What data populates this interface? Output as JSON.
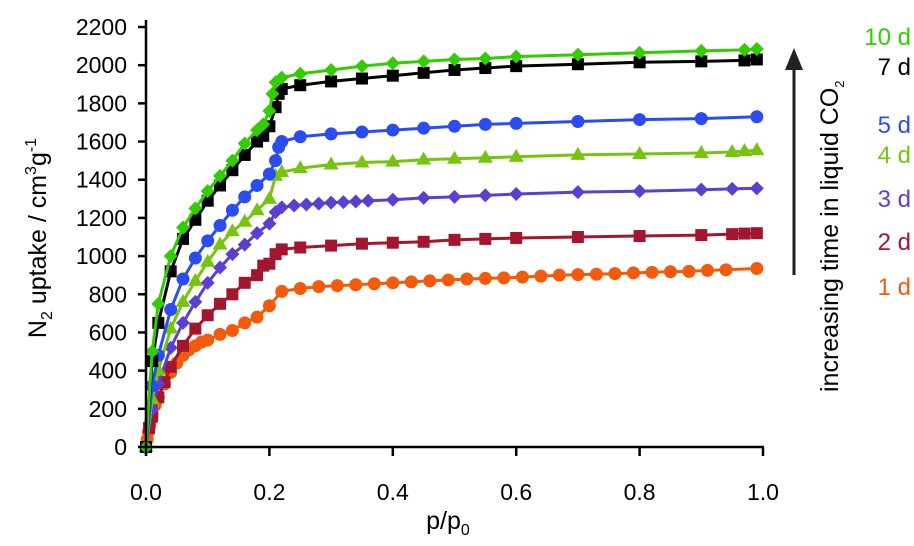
{
  "chart_data": {
    "type": "line",
    "title": "",
    "xlabel": "p/p",
    "xlabel_sub": "0",
    "ylabel_parts": {
      "n": "N",
      "n_sub": "2",
      "mid": " uptake / cm",
      "sup3": "3",
      "g": "g",
      "sup_neg1": "-1"
    },
    "xlim": [
      0.0,
      1.0
    ],
    "ylim": [
      0,
      2200
    ],
    "xticks": [
      0.0,
      0.2,
      0.4,
      0.6,
      0.8,
      1.0
    ],
    "xtick_labels": [
      "0.0",
      "0.2",
      "0.4",
      "0.6",
      "0.8",
      "1.0"
    ],
    "yticks": [
      0,
      200,
      400,
      600,
      800,
      1000,
      1200,
      1400,
      1600,
      1800,
      2000,
      2200
    ],
    "ytick_labels": [
      "0",
      "200",
      "400",
      "600",
      "800",
      "1000",
      "1200",
      "1400",
      "1600",
      "1800",
      "2000",
      "2200"
    ],
    "grid": false,
    "annotation": {
      "text": "increasing time in liquid CO",
      "sub": "2",
      "arrow_direction": "up"
    },
    "legend_placement": "right",
    "series": [
      {
        "name": "10 d",
        "color": "#33cc00",
        "marker": "diamond",
        "x": [
          0.0,
          0.01,
          0.02,
          0.04,
          0.06,
          0.08,
          0.1,
          0.12,
          0.14,
          0.16,
          0.18,
          0.19,
          0.2,
          0.205,
          0.21,
          0.22,
          0.25,
          0.3,
          0.35,
          0.4,
          0.45,
          0.5,
          0.55,
          0.6,
          0.7,
          0.8,
          0.9,
          0.97,
          0.99
        ],
        "y": [
          0,
          500,
          750,
          1000,
          1150,
          1250,
          1340,
          1420,
          1500,
          1590,
          1660,
          1690,
          1760,
          1850,
          1910,
          1935,
          1955,
          1975,
          1995,
          2010,
          2020,
          2030,
          2035,
          2045,
          2055,
          2065,
          2075,
          2080,
          2085
        ]
      },
      {
        "name": "7 d",
        "color": "#000000",
        "marker": "square",
        "x": [
          0.0,
          0.01,
          0.02,
          0.04,
          0.06,
          0.08,
          0.1,
          0.12,
          0.14,
          0.16,
          0.18,
          0.19,
          0.2,
          0.21,
          0.215,
          0.22,
          0.25,
          0.3,
          0.35,
          0.4,
          0.45,
          0.5,
          0.55,
          0.6,
          0.7,
          0.8,
          0.9,
          0.97,
          0.99
        ],
        "y": [
          0,
          450,
          650,
          920,
          1090,
          1190,
          1290,
          1370,
          1450,
          1530,
          1600,
          1630,
          1680,
          1780,
          1850,
          1875,
          1895,
          1915,
          1930,
          1945,
          1960,
          1975,
          1985,
          1995,
          2005,
          2015,
          2020,
          2025,
          2030
        ]
      },
      {
        "name": "5 d",
        "color": "#2b4cf0",
        "marker": "circle",
        "x": [
          0.0,
          0.01,
          0.02,
          0.04,
          0.06,
          0.08,
          0.1,
          0.12,
          0.14,
          0.16,
          0.18,
          0.2,
          0.21,
          0.215,
          0.22,
          0.25,
          0.3,
          0.35,
          0.4,
          0.45,
          0.5,
          0.55,
          0.6,
          0.7,
          0.8,
          0.9,
          0.99
        ],
        "y": [
          0,
          320,
          480,
          720,
          880,
          990,
          1080,
          1160,
          1240,
          1310,
          1370,
          1430,
          1500,
          1570,
          1600,
          1625,
          1640,
          1650,
          1660,
          1670,
          1680,
          1690,
          1695,
          1705,
          1715,
          1720,
          1730
        ]
      },
      {
        "name": "4 d",
        "color": "#77c40f",
        "marker": "triangle",
        "x": [
          0.0,
          0.01,
          0.02,
          0.04,
          0.06,
          0.08,
          0.1,
          0.12,
          0.14,
          0.16,
          0.18,
          0.2,
          0.21,
          0.22,
          0.25,
          0.3,
          0.35,
          0.4,
          0.45,
          0.5,
          0.55,
          0.6,
          0.7,
          0.8,
          0.9,
          0.95,
          0.97,
          0.99
        ],
        "y": [
          0,
          250,
          400,
          620,
          760,
          870,
          970,
          1060,
          1130,
          1180,
          1240,
          1300,
          1420,
          1440,
          1460,
          1480,
          1490,
          1495,
          1505,
          1510,
          1515,
          1520,
          1530,
          1535,
          1540,
          1545,
          1550,
          1555
        ]
      },
      {
        "name": "3 d",
        "color": "#5b3fd0",
        "marker": "diamond",
        "x": [
          0.0,
          0.01,
          0.02,
          0.04,
          0.06,
          0.08,
          0.1,
          0.12,
          0.14,
          0.16,
          0.18,
          0.2,
          0.21,
          0.22,
          0.24,
          0.26,
          0.28,
          0.3,
          0.32,
          0.34,
          0.36,
          0.4,
          0.45,
          0.5,
          0.55,
          0.6,
          0.7,
          0.8,
          0.9,
          0.95,
          0.99
        ],
        "y": [
          0,
          200,
          330,
          520,
          650,
          760,
          860,
          940,
          1010,
          1060,
          1120,
          1170,
          1230,
          1255,
          1265,
          1270,
          1275,
          1280,
          1283,
          1286,
          1290,
          1295,
          1305,
          1310,
          1318,
          1325,
          1335,
          1340,
          1348,
          1352,
          1355
        ]
      },
      {
        "name": "2 d",
        "color": "#a3162e",
        "marker": "square",
        "x": [
          0.0,
          0.005,
          0.01,
          0.02,
          0.03,
          0.04,
          0.06,
          0.08,
          0.1,
          0.12,
          0.14,
          0.16,
          0.18,
          0.19,
          0.2,
          0.21,
          0.22,
          0.25,
          0.3,
          0.35,
          0.4,
          0.45,
          0.5,
          0.55,
          0.6,
          0.7,
          0.8,
          0.9,
          0.95,
          0.97,
          0.99
        ],
        "y": [
          0,
          100,
          160,
          260,
          340,
          420,
          530,
          620,
          690,
          750,
          800,
          860,
          900,
          950,
          960,
          1010,
          1035,
          1045,
          1055,
          1065,
          1070,
          1075,
          1085,
          1090,
          1095,
          1100,
          1105,
          1110,
          1115,
          1118,
          1120
        ]
      },
      {
        "name": "1 d",
        "color": "#f25a0c",
        "marker": "circle",
        "x": [
          0.0,
          0.002,
          0.004,
          0.006,
          0.008,
          0.01,
          0.015,
          0.02,
          0.03,
          0.04,
          0.05,
          0.06,
          0.07,
          0.08,
          0.09,
          0.1,
          0.12,
          0.14,
          0.16,
          0.18,
          0.2,
          0.22,
          0.25,
          0.28,
          0.31,
          0.34,
          0.37,
          0.4,
          0.43,
          0.46,
          0.49,
          0.52,
          0.55,
          0.58,
          0.61,
          0.64,
          0.67,
          0.7,
          0.73,
          0.76,
          0.79,
          0.82,
          0.85,
          0.88,
          0.91,
          0.94,
          0.99
        ],
        "y": [
          0,
          40,
          80,
          110,
          140,
          170,
          220,
          260,
          330,
          390,
          440,
          480,
          510,
          530,
          550,
          560,
          590,
          610,
          650,
          680,
          740,
          815,
          830,
          840,
          845,
          850,
          855,
          860,
          865,
          870,
          875,
          880,
          883,
          886,
          890,
          895,
          900,
          903,
          905,
          908,
          912,
          915,
          918,
          920,
          925,
          928,
          935
        ]
      }
    ]
  }
}
